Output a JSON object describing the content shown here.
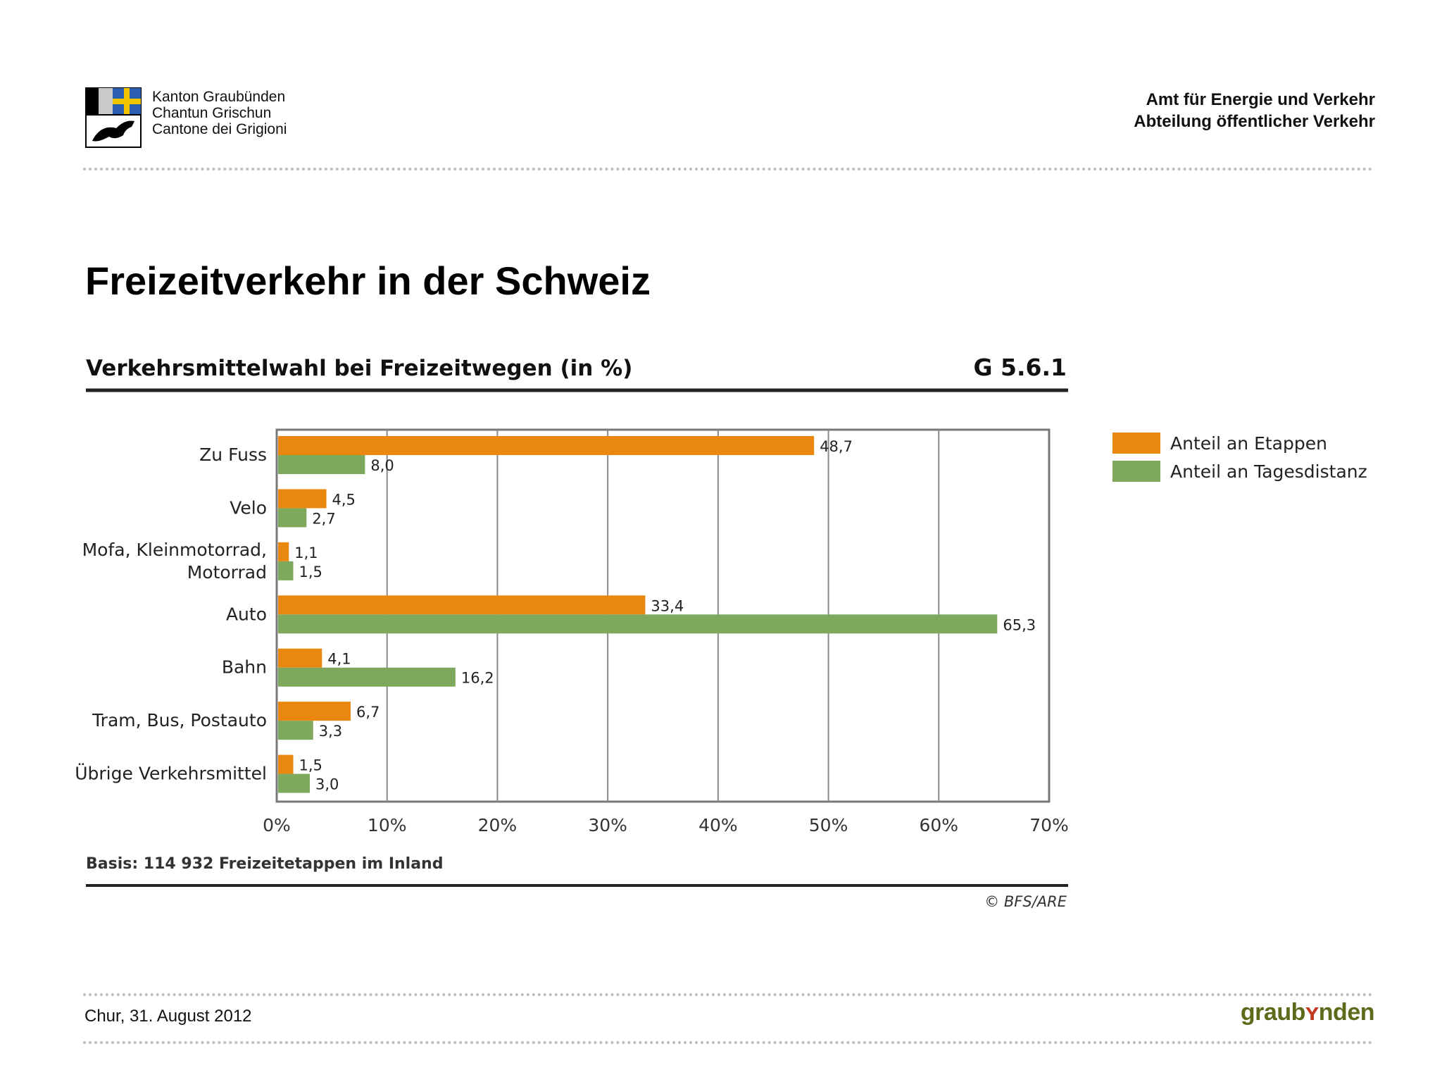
{
  "header": {
    "canton_lines": [
      "Kanton Graubünden",
      "Chantun Grischun",
      "Cantone dei Grigioni"
    ],
    "department_lines": [
      "Amt für Energie und Verkehr",
      "Abteilung öffentlicher Verkehr"
    ]
  },
  "page_title": "Freizeitverkehr in der Schweiz",
  "footer": {
    "date": "Chur, 31. August 2012",
    "brand": "graubünden"
  },
  "colors": {
    "etappen": "#e9870f",
    "tagesdistanz": "#7ea85c",
    "grid": "#8a8a8a",
    "rule": "#222222"
  },
  "chart_data": {
    "type": "bar",
    "orientation": "horizontal",
    "title": "Verkehrsmittelwahl bei Freizeitwegen (in %)",
    "figure_id": "G 5.6.1",
    "categories": [
      [
        "Zu Fuss"
      ],
      [
        "Velo"
      ],
      [
        "Mofa, Kleinmotorrad,",
        "Motorrad"
      ],
      [
        "Auto"
      ],
      [
        "Bahn"
      ],
      [
        "Tram, Bus, Postauto"
      ],
      [
        "Übrige Verkehrsmittel"
      ]
    ],
    "series": [
      {
        "name": "Anteil an Etappen",
        "values": [
          48.7,
          4.5,
          1.1,
          33.4,
          4.1,
          6.7,
          1.5
        ],
        "labels": [
          "48,7",
          "4,5",
          "1,1",
          "33,4",
          "4,1",
          "6,7",
          "1,5"
        ]
      },
      {
        "name": "Anteil an Tagesdistanz",
        "values": [
          8.0,
          2.7,
          1.5,
          65.3,
          16.2,
          3.3,
          3.0
        ],
        "labels": [
          "8,0",
          "2,7",
          "1,5",
          "65,3",
          "16,2",
          "3,3",
          "3,0"
        ]
      }
    ],
    "xlim": [
      0,
      70
    ],
    "xticks": [
      0,
      10,
      20,
      30,
      40,
      50,
      60,
      70
    ],
    "xtick_labels": [
      "0%",
      "10%",
      "20%",
      "30%",
      "40%",
      "50%",
      "60%",
      "70%"
    ],
    "grid": true,
    "legend_position": "right",
    "basis_note": "Basis: 114 932 Freizeitetappen im Inland",
    "source": "© BFS/ARE"
  }
}
